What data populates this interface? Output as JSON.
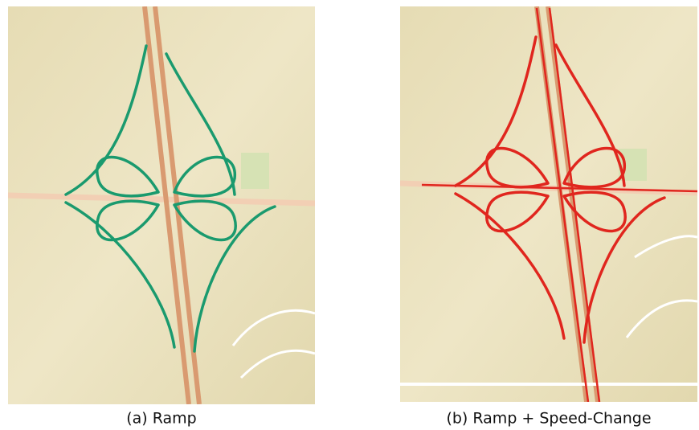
{
  "captions": [
    "(a) Ramp",
    "(b) Ramp + Speed-Change"
  ]
}
